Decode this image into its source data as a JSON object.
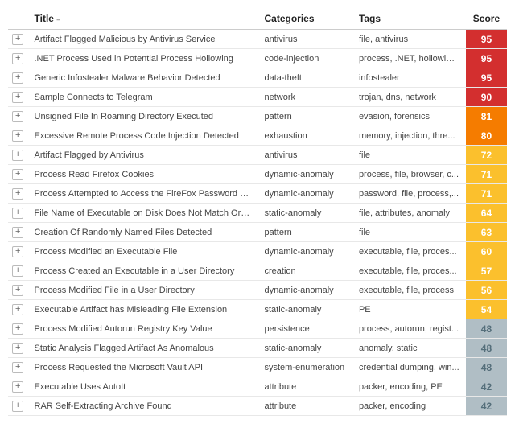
{
  "columns": {
    "title": "Title",
    "categories": "Categories",
    "tags": "Tags",
    "score": "Score"
  },
  "sort_indicator": "▪▪",
  "expand_glyph": "+",
  "score_palette": {
    "critical": "#d32f2f",
    "high": "#f57c00",
    "medium": "#fbc02d",
    "low": "#b0bec5"
  },
  "score_text_colors": {
    "critical": "#ffffff",
    "high": "#ffffff",
    "medium": "#ffffff",
    "low": "#546e7a"
  },
  "rows": [
    {
      "title": "Artifact Flagged Malicious by Antivirus Service",
      "category": "antivirus",
      "tags": "file, antivirus",
      "score": 95,
      "level": "critical"
    },
    {
      "title": ".NET Process Used in Potential Process Hollowing",
      "category": "code-injection",
      "tags": "process, .NET, hollowing...",
      "score": 95,
      "level": "critical"
    },
    {
      "title": "Generic Infostealer Malware Behavior Detected",
      "category": "data-theft",
      "tags": "infostealer",
      "score": 95,
      "level": "critical"
    },
    {
      "title": "Sample Connects to Telegram",
      "category": "network",
      "tags": "trojan, dns, network",
      "score": 90,
      "level": "critical"
    },
    {
      "title": "Unsigned File In Roaming Directory Executed",
      "category": "pattern",
      "tags": "evasion, forensics",
      "score": 81,
      "level": "high"
    },
    {
      "title": "Excessive Remote Process Code Injection Detected",
      "category": "exhaustion",
      "tags": "memory, injection, thre...",
      "score": 80,
      "level": "high"
    },
    {
      "title": "Artifact Flagged by Antivirus",
      "category": "antivirus",
      "tags": "file",
      "score": 72,
      "level": "medium"
    },
    {
      "title": "Process Read Firefox Cookies",
      "category": "dynamic-anomaly",
      "tags": "process, file, browser, c...",
      "score": 71,
      "level": "medium"
    },
    {
      "title": "Process Attempted to Access the FireFox Password Manage...",
      "category": "dynamic-anomaly",
      "tags": "password, file, process,...",
      "score": 71,
      "level": "medium"
    },
    {
      "title": "File Name of Executable on Disk Does Not Match Original F...",
      "category": "static-anomaly",
      "tags": "file, attributes, anomaly",
      "score": 64,
      "level": "medium"
    },
    {
      "title": "Creation Of Randomly Named Files Detected",
      "category": "pattern",
      "tags": "file",
      "score": 63,
      "level": "medium"
    },
    {
      "title": "Process Modified an Executable File",
      "category": "dynamic-anomaly",
      "tags": "executable, file, proces...",
      "score": 60,
      "level": "medium"
    },
    {
      "title": "Process Created an Executable in a User Directory",
      "category": "creation",
      "tags": "executable, file, proces...",
      "score": 57,
      "level": "medium"
    },
    {
      "title": "Process Modified File in a User Directory",
      "category": "dynamic-anomaly",
      "tags": "executable, file, process",
      "score": 56,
      "level": "medium"
    },
    {
      "title": "Executable Artifact has Misleading File Extension",
      "category": "static-anomaly",
      "tags": "PE",
      "score": 54,
      "level": "medium"
    },
    {
      "title": "Process Modified Autorun Registry Key Value",
      "category": "persistence",
      "tags": "process, autorun, regist...",
      "score": 48,
      "level": "low"
    },
    {
      "title": "Static Analysis Flagged Artifact As Anomalous",
      "category": "static-anomaly",
      "tags": "anomaly, static",
      "score": 48,
      "level": "low"
    },
    {
      "title": "Process Requested the Microsoft Vault API",
      "category": "system-enumeration",
      "tags": "credential dumping, win...",
      "score": 48,
      "level": "low"
    },
    {
      "title": "Executable Uses AutoIt",
      "category": "attribute",
      "tags": "packer, encoding, PE",
      "score": 42,
      "level": "low"
    },
    {
      "title": "RAR Self-Extracting Archive Found",
      "category": "attribute",
      "tags": "packer, encoding",
      "score": 42,
      "level": "low"
    }
  ]
}
